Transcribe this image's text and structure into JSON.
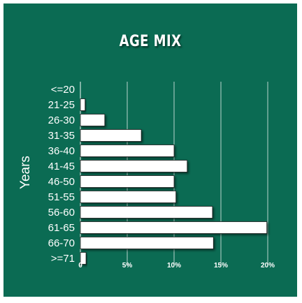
{
  "chart_data": {
    "type": "bar",
    "orientation": "horizontal",
    "title": "AGE MIX",
    "ylabel": "Years",
    "xlabel": "",
    "categories": [
      "<=20",
      "21-25",
      "26-30",
      "31-35",
      "36-40",
      "41-45",
      "46-50",
      "51-55",
      "56-60",
      "61-65",
      "66-70",
      ">=71"
    ],
    "values": [
      0,
      0.5,
      2.6,
      6.5,
      10.0,
      11.4,
      10.0,
      10.2,
      14.1,
      19.9,
      14.2,
      0.6
    ],
    "xlim": [
      0,
      20
    ],
    "xticks": [
      0,
      5,
      10,
      15,
      20
    ],
    "xtick_labels": [
      "0",
      "5%",
      "10%",
      "15%",
      "20%"
    ],
    "grid": "vertical",
    "legend": "none"
  },
  "colors": {
    "background": "#0b6b53",
    "bar_fill": "#ffffff",
    "bar_stroke": "#1a1a1a",
    "grid": "#cfe3dc"
  }
}
